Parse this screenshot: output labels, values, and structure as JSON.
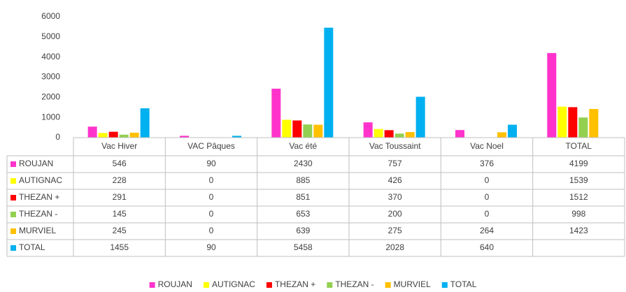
{
  "chart_data": {
    "type": "bar",
    "categories": [
      "Vac Hiver",
      "VAC Pâques",
      "Vac été",
      "Vac Toussaint",
      "Vac Noel",
      "TOTAL"
    ],
    "series": [
      {
        "name": "ROUJAN",
        "color": "#ff33cc",
        "values": [
          546,
          90,
          2430,
          757,
          376,
          4199
        ]
      },
      {
        "name": "AUTIGNAC",
        "color": "#ffff00",
        "values": [
          228,
          0,
          885,
          426,
          0,
          1539
        ]
      },
      {
        "name": "THEZAN +",
        "color": "#ff0000",
        "values": [
          291,
          0,
          851,
          370,
          0,
          1512
        ]
      },
      {
        "name": "THEZAN -",
        "color": "#92d050",
        "values": [
          145,
          0,
          653,
          200,
          0,
          998
        ]
      },
      {
        "name": "MURVIEL",
        "color": "#ffc000",
        "values": [
          245,
          0,
          639,
          275,
          264,
          1423
        ]
      },
      {
        "name": "TOTAL",
        "color": "#00b0f0",
        "values": [
          1455,
          90,
          5458,
          2028,
          640,
          null
        ]
      }
    ],
    "ylim": [
      0,
      6000
    ],
    "yticks": [
      0,
      1000,
      2000,
      3000,
      4000,
      5000,
      6000
    ],
    "grid": false
  }
}
